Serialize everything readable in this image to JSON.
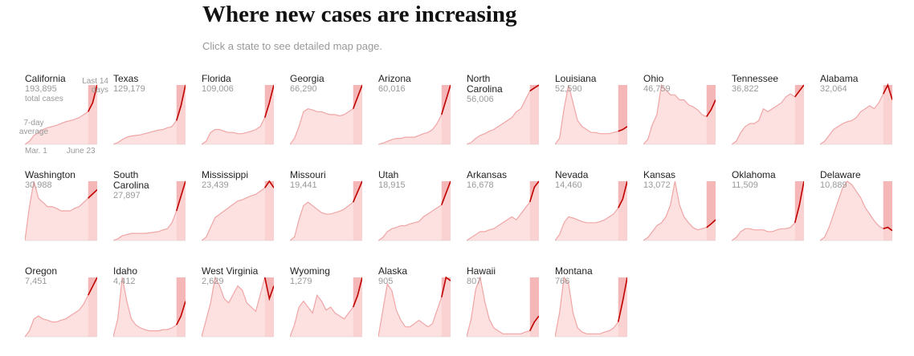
{
  "chart_data": {
    "type": "small-multiples",
    "title": "Where new cases are increasing",
    "subtitle": "Click a state to see detailed map page.",
    "total_cases_note": "total cases",
    "recent_note": "Last 14 days",
    "average_note": "7-day average",
    "start_date": "Mar. 1",
    "end_date": "June 23",
    "panels": [
      {
        "name": "California",
        "cases": "193,895",
        "values": [
          0,
          5,
          15,
          20,
          25,
          28,
          30,
          32,
          35,
          38,
          40,
          42,
          45,
          50,
          55,
          70,
          100
        ]
      },
      {
        "name": "Texas",
        "cases": "129,179",
        "values": [
          0,
          3,
          8,
          12,
          14,
          15,
          16,
          18,
          20,
          22,
          24,
          25,
          28,
          30,
          40,
          65,
          100
        ]
      },
      {
        "name": "Florida",
        "cases": "109,006",
        "values": [
          0,
          5,
          20,
          25,
          25,
          22,
          20,
          20,
          18,
          18,
          20,
          22,
          25,
          30,
          45,
          70,
          100
        ]
      },
      {
        "name": "Georgia",
        "cases": "66,290",
        "values": [
          0,
          10,
          30,
          55,
          60,
          58,
          55,
          55,
          52,
          50,
          50,
          48,
          50,
          55,
          60,
          80,
          100
        ]
      },
      {
        "name": "Arizona",
        "cases": "60,016",
        "values": [
          0,
          2,
          5,
          8,
          10,
          10,
          12,
          12,
          12,
          15,
          18,
          20,
          25,
          35,
          50,
          75,
          100
        ]
      },
      {
        "name": "North Carolina",
        "cases": "56,006",
        "values": [
          0,
          3,
          10,
          15,
          18,
          22,
          25,
          30,
          35,
          40,
          45,
          55,
          60,
          75,
          90,
          95,
          100
        ]
      },
      {
        "name": "Louisiana",
        "cases": "52,590",
        "values": [
          0,
          10,
          60,
          100,
          70,
          40,
          30,
          25,
          20,
          20,
          18,
          18,
          18,
          20,
          22,
          25,
          30
        ]
      },
      {
        "name": "Ohio",
        "cases": "46,759",
        "values": [
          0,
          5,
          20,
          30,
          60,
          55,
          50,
          50,
          45,
          45,
          40,
          38,
          35,
          30,
          28,
          35,
          45
        ]
      },
      {
        "name": "Tennessee",
        "cases": "36,822",
        "values": [
          0,
          5,
          20,
          30,
          35,
          35,
          40,
          60,
          55,
          60,
          65,
          70,
          80,
          85,
          80,
          90,
          100
        ]
      },
      {
        "name": "Alabama",
        "cases": "32,064",
        "values": [
          0,
          5,
          15,
          25,
          30,
          35,
          38,
          40,
          45,
          55,
          60,
          65,
          60,
          70,
          85,
          100,
          75
        ]
      },
      {
        "name": "Washington",
        "cases": "30,988",
        "values": [
          0,
          40,
          70,
          50,
          45,
          40,
          40,
          38,
          35,
          35,
          35,
          38,
          40,
          45,
          50,
          55,
          60
        ]
      },
      {
        "name": "South Carolina",
        "cases": "27,897",
        "values": [
          0,
          3,
          8,
          10,
          12,
          12,
          12,
          12,
          13,
          14,
          15,
          18,
          20,
          30,
          50,
          75,
          100
        ]
      },
      {
        "name": "Mississippi",
        "cases": "23,439",
        "values": [
          0,
          5,
          20,
          35,
          40,
          45,
          50,
          55,
          60,
          62,
          65,
          68,
          70,
          75,
          80,
          90,
          80
        ]
      },
      {
        "name": "Missouri",
        "cases": "19,441",
        "values": [
          0,
          5,
          30,
          50,
          55,
          50,
          45,
          40,
          38,
          38,
          40,
          42,
          45,
          50,
          55,
          70,
          85
        ]
      },
      {
        "name": "Utah",
        "cases": "18,915",
        "values": [
          0,
          5,
          15,
          20,
          22,
          25,
          25,
          28,
          30,
          32,
          40,
          45,
          50,
          55,
          60,
          80,
          100
        ]
      },
      {
        "name": "Arkansas",
        "cases": "16,678",
        "values": [
          0,
          5,
          10,
          15,
          15,
          18,
          20,
          25,
          30,
          35,
          40,
          35,
          45,
          55,
          65,
          90,
          100
        ]
      },
      {
        "name": "Nevada",
        "cases": "14,460",
        "values": [
          0,
          10,
          30,
          40,
          38,
          35,
          32,
          30,
          30,
          30,
          32,
          35,
          40,
          45,
          55,
          70,
          100
        ]
      },
      {
        "name": "Kansas",
        "cases": "13,072",
        "values": [
          0,
          5,
          15,
          25,
          30,
          40,
          60,
          100,
          60,
          40,
          30,
          22,
          18,
          20,
          22,
          28,
          35
        ]
      },
      {
        "name": "Oklahoma",
        "cases": "11,509",
        "values": [
          0,
          5,
          15,
          20,
          20,
          18,
          18,
          18,
          15,
          15,
          18,
          20,
          20,
          22,
          30,
          60,
          100
        ]
      },
      {
        "name": "Delaware",
        "cases": "10,889",
        "values": [
          0,
          5,
          20,
          40,
          60,
          80,
          90,
          85,
          75,
          65,
          50,
          40,
          30,
          22,
          18,
          20,
          15
        ]
      },
      {
        "name": "Oregon",
        "cases": "7,451",
        "values": [
          0,
          10,
          30,
          35,
          30,
          28,
          25,
          25,
          28,
          30,
          35,
          40,
          45,
          55,
          70,
          85,
          100
        ]
      },
      {
        "name": "Idaho",
        "cases": "4,412",
        "values": [
          0,
          30,
          100,
          60,
          30,
          20,
          15,
          12,
          10,
          10,
          10,
          12,
          12,
          15,
          20,
          35,
          60
        ]
      },
      {
        "name": "West Virginia",
        "cases": "2,629",
        "values": [
          0,
          20,
          40,
          70,
          60,
          45,
          40,
          50,
          60,
          55,
          40,
          35,
          30,
          50,
          70,
          45,
          60
        ]
      },
      {
        "name": "Wyoming",
        "cases": "1,279",
        "values": [
          0,
          20,
          50,
          60,
          50,
          40,
          70,
          60,
          45,
          50,
          40,
          35,
          30,
          40,
          50,
          70,
          100
        ]
      },
      {
        "name": "Alaska",
        "cases": "905",
        "values": [
          0,
          40,
          80,
          70,
          40,
          25,
          15,
          15,
          20,
          25,
          20,
          15,
          20,
          40,
          60,
          90,
          85
        ]
      },
      {
        "name": "Hawaii",
        "cases": "807",
        "values": [
          0,
          30,
          80,
          100,
          60,
          30,
          15,
          10,
          5,
          5,
          5,
          5,
          5,
          8,
          10,
          25,
          35
        ]
      },
      {
        "name": "Montana",
        "cases": "766",
        "values": [
          0,
          40,
          100,
          90,
          40,
          15,
          8,
          5,
          5,
          5,
          5,
          8,
          10,
          15,
          25,
          60,
          100
        ]
      }
    ]
  }
}
